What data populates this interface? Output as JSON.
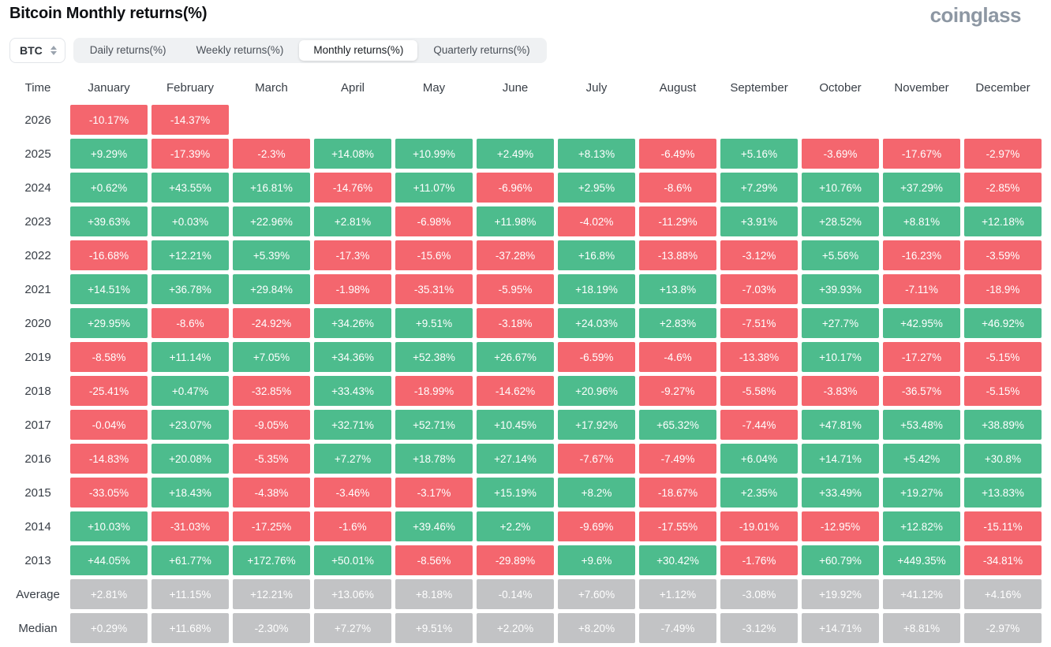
{
  "page": {
    "title": "Bitcoin Monthly returns(%)",
    "brand": "coinglass"
  },
  "controls": {
    "coin_selector": {
      "value": "BTC"
    },
    "tabs": [
      {
        "label": "Daily returns(%)"
      },
      {
        "label": "Weekly returns(%)"
      },
      {
        "label": "Monthly returns(%)"
      },
      {
        "label": "Quarterly returns(%)"
      }
    ],
    "active_tab": "Monthly returns(%)"
  },
  "colors": {
    "positive": "#4dbc8d",
    "negative": "#f4666e",
    "neutral": "#c2c3c5"
  },
  "chart_data": {
    "type": "heatmap",
    "title": "Bitcoin Monthly returns(%)",
    "columns": [
      "Time",
      "January",
      "February",
      "March",
      "April",
      "May",
      "June",
      "July",
      "August",
      "September",
      "October",
      "November",
      "December"
    ],
    "rows": [
      {
        "label": "2026",
        "neutral": false,
        "values": [
          "-10.17%",
          "-14.37%",
          "",
          "",
          "",
          "",
          "",
          "",
          "",
          "",
          "",
          ""
        ]
      },
      {
        "label": "2025",
        "neutral": false,
        "values": [
          "+9.29%",
          "-17.39%",
          "-2.3%",
          "+14.08%",
          "+10.99%",
          "+2.49%",
          "+8.13%",
          "-6.49%",
          "+5.16%",
          "-3.69%",
          "-17.67%",
          "-2.97%"
        ]
      },
      {
        "label": "2024",
        "neutral": false,
        "values": [
          "+0.62%",
          "+43.55%",
          "+16.81%",
          "-14.76%",
          "+11.07%",
          "-6.96%",
          "+2.95%",
          "-8.6%",
          "+7.29%",
          "+10.76%",
          "+37.29%",
          "-2.85%"
        ]
      },
      {
        "label": "2023",
        "neutral": false,
        "values": [
          "+39.63%",
          "+0.03%",
          "+22.96%",
          "+2.81%",
          "-6.98%",
          "+11.98%",
          "-4.02%",
          "-11.29%",
          "+3.91%",
          "+28.52%",
          "+8.81%",
          "+12.18%"
        ]
      },
      {
        "label": "2022",
        "neutral": false,
        "values": [
          "-16.68%",
          "+12.21%",
          "+5.39%",
          "-17.3%",
          "-15.6%",
          "-37.28%",
          "+16.8%",
          "-13.88%",
          "-3.12%",
          "+5.56%",
          "-16.23%",
          "-3.59%"
        ]
      },
      {
        "label": "2021",
        "neutral": false,
        "values": [
          "+14.51%",
          "+36.78%",
          "+29.84%",
          "-1.98%",
          "-35.31%",
          "-5.95%",
          "+18.19%",
          "+13.8%",
          "-7.03%",
          "+39.93%",
          "-7.11%",
          "-18.9%"
        ]
      },
      {
        "label": "2020",
        "neutral": false,
        "values": [
          "+29.95%",
          "-8.6%",
          "-24.92%",
          "+34.26%",
          "+9.51%",
          "-3.18%",
          "+24.03%",
          "+2.83%",
          "-7.51%",
          "+27.7%",
          "+42.95%",
          "+46.92%"
        ]
      },
      {
        "label": "2019",
        "neutral": false,
        "values": [
          "-8.58%",
          "+11.14%",
          "+7.05%",
          "+34.36%",
          "+52.38%",
          "+26.67%",
          "-6.59%",
          "-4.6%",
          "-13.38%",
          "+10.17%",
          "-17.27%",
          "-5.15%"
        ]
      },
      {
        "label": "2018",
        "neutral": false,
        "values": [
          "-25.41%",
          "+0.47%",
          "-32.85%",
          "+33.43%",
          "-18.99%",
          "-14.62%",
          "+20.96%",
          "-9.27%",
          "-5.58%",
          "-3.83%",
          "-36.57%",
          "-5.15%"
        ]
      },
      {
        "label": "2017",
        "neutral": false,
        "values": [
          "-0.04%",
          "+23.07%",
          "-9.05%",
          "+32.71%",
          "+52.71%",
          "+10.45%",
          "+17.92%",
          "+65.32%",
          "-7.44%",
          "+47.81%",
          "+53.48%",
          "+38.89%"
        ]
      },
      {
        "label": "2016",
        "neutral": false,
        "values": [
          "-14.83%",
          "+20.08%",
          "-5.35%",
          "+7.27%",
          "+18.78%",
          "+27.14%",
          "-7.67%",
          "-7.49%",
          "+6.04%",
          "+14.71%",
          "+5.42%",
          "+30.8%"
        ]
      },
      {
        "label": "2015",
        "neutral": false,
        "values": [
          "-33.05%",
          "+18.43%",
          "-4.38%",
          "-3.46%",
          "-3.17%",
          "+15.19%",
          "+8.2%",
          "-18.67%",
          "+2.35%",
          "+33.49%",
          "+19.27%",
          "+13.83%"
        ]
      },
      {
        "label": "2014",
        "neutral": false,
        "values": [
          "+10.03%",
          "-31.03%",
          "-17.25%",
          "-1.6%",
          "+39.46%",
          "+2.2%",
          "-9.69%",
          "-17.55%",
          "-19.01%",
          "-12.95%",
          "+12.82%",
          "-15.11%"
        ]
      },
      {
        "label": "2013",
        "neutral": false,
        "values": [
          "+44.05%",
          "+61.77%",
          "+172.76%",
          "+50.01%",
          "-8.56%",
          "-29.89%",
          "+9.6%",
          "+30.42%",
          "-1.76%",
          "+60.79%",
          "+449.35%",
          "-34.81%"
        ]
      },
      {
        "label": "Average",
        "neutral": true,
        "values": [
          "+2.81%",
          "+11.15%",
          "+12.21%",
          "+13.06%",
          "+8.18%",
          "-0.14%",
          "+7.60%",
          "+1.12%",
          "-3.08%",
          "+19.92%",
          "+41.12%",
          "+4.16%"
        ]
      },
      {
        "label": "Median",
        "neutral": true,
        "values": [
          "+0.29%",
          "+11.68%",
          "-2.30%",
          "+7.27%",
          "+9.51%",
          "+2.20%",
          "+8.20%",
          "-7.49%",
          "-3.12%",
          "+14.71%",
          "+8.81%",
          "-2.97%"
        ]
      }
    ]
  }
}
